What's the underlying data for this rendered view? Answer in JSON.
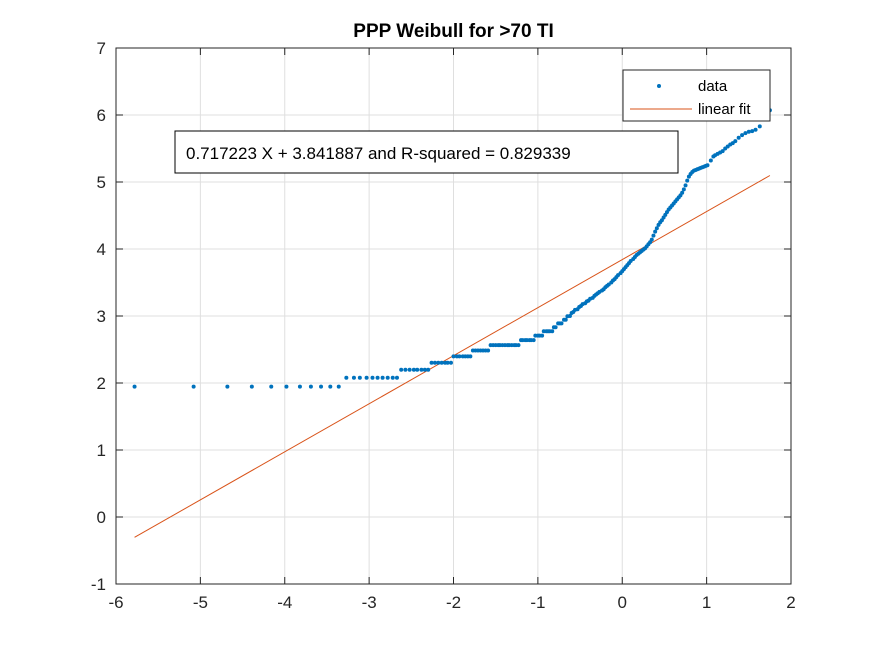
{
  "chart_data": {
    "type": "scatter",
    "title": "PPP Weibull for >70 TI",
    "xlabel": "",
    "ylabel": "",
    "xlim": [
      -6,
      2
    ],
    "ylim": [
      -1,
      7
    ],
    "x_ticks": [
      "-6",
      "-5",
      "-4",
      "-3",
      "-2",
      "-1",
      "0",
      "1",
      "2"
    ],
    "y_ticks": [
      "-1",
      "0",
      "1",
      "2",
      "3",
      "4",
      "5",
      "6",
      "7"
    ],
    "grid": true,
    "legend_position": "top-right",
    "series": [
      {
        "name": "data",
        "kind": "points",
        "color": "#0072BD",
        "values": [
          [
            -5.78,
            1.946
          ],
          [
            -5.08,
            1.946
          ],
          [
            -4.68,
            1.946
          ],
          [
            -4.39,
            1.946
          ],
          [
            -4.16,
            1.946
          ],
          [
            -3.98,
            1.946
          ],
          [
            -3.82,
            1.946
          ],
          [
            -3.69,
            1.946
          ],
          [
            -3.57,
            1.946
          ],
          [
            -3.46,
            1.946
          ],
          [
            -3.36,
            1.946
          ],
          [
            -3.27,
            2.079
          ],
          [
            -3.18,
            2.079
          ],
          [
            -3.11,
            2.079
          ],
          [
            -3.03,
            2.079
          ],
          [
            -2.96,
            2.079
          ],
          [
            -2.9,
            2.079
          ],
          [
            -2.84,
            2.079
          ],
          [
            -2.78,
            2.079
          ],
          [
            -2.72,
            2.079
          ],
          [
            -2.67,
            2.079
          ],
          [
            -2.62,
            2.197
          ],
          [
            -2.57,
            2.197
          ],
          [
            -2.52,
            2.197
          ],
          [
            -2.47,
            2.197
          ],
          [
            -2.43,
            2.197
          ],
          [
            -2.38,
            2.197
          ],
          [
            -2.34,
            2.197
          ],
          [
            -2.3,
            2.197
          ],
          [
            -2.26,
            2.303
          ],
          [
            -2.22,
            2.303
          ],
          [
            -2.18,
            2.303
          ],
          [
            -2.14,
            2.303
          ],
          [
            -2.1,
            2.303
          ],
          [
            -2.07,
            2.303
          ],
          [
            -2.03,
            2.303
          ],
          [
            -2.0,
            2.398
          ],
          [
            -1.96,
            2.398
          ],
          [
            -1.93,
            2.398
          ],
          [
            -1.89,
            2.398
          ],
          [
            -1.86,
            2.398
          ],
          [
            -1.83,
            2.398
          ],
          [
            -1.8,
            2.398
          ],
          [
            -1.77,
            2.485
          ],
          [
            -1.74,
            2.485
          ],
          [
            -1.71,
            2.485
          ],
          [
            -1.68,
            2.485
          ],
          [
            -1.65,
            2.485
          ],
          [
            -1.62,
            2.485
          ],
          [
            -1.59,
            2.485
          ],
          [
            -1.56,
            2.565
          ],
          [
            -1.53,
            2.565
          ],
          [
            -1.5,
            2.565
          ],
          [
            -1.47,
            2.565
          ],
          [
            -1.45,
            2.565
          ],
          [
            -1.42,
            2.565
          ],
          [
            -1.39,
            2.565
          ],
          [
            -1.36,
            2.565
          ],
          [
            -1.34,
            2.565
          ],
          [
            -1.31,
            2.565
          ],
          [
            -1.28,
            2.565
          ],
          [
            -1.26,
            2.565
          ],
          [
            -1.23,
            2.565
          ],
          [
            -1.2,
            2.639
          ],
          [
            -1.18,
            2.639
          ],
          [
            -1.15,
            2.639
          ],
          [
            -1.13,
            2.639
          ],
          [
            -1.1,
            2.639
          ],
          [
            -1.08,
            2.639
          ],
          [
            -1.05,
            2.639
          ],
          [
            -1.03,
            2.708
          ],
          [
            -1.0,
            2.708
          ],
          [
            -0.98,
            2.708
          ],
          [
            -0.95,
            2.708
          ],
          [
            -0.93,
            2.773
          ],
          [
            -0.9,
            2.773
          ],
          [
            -0.88,
            2.773
          ],
          [
            -0.86,
            2.773
          ],
          [
            -0.83,
            2.773
          ],
          [
            -0.81,
            2.833
          ],
          [
            -0.79,
            2.833
          ],
          [
            -0.76,
            2.89
          ],
          [
            -0.74,
            2.89
          ],
          [
            -0.72,
            2.89
          ],
          [
            -0.69,
            2.944
          ],
          [
            -0.67,
            2.944
          ],
          [
            -0.65,
            2.996
          ],
          [
            -0.62,
            3.0
          ],
          [
            -0.6,
            3.045
          ],
          [
            -0.58,
            3.06
          ],
          [
            -0.56,
            3.091
          ],
          [
            -0.53,
            3.1
          ],
          [
            -0.51,
            3.135
          ],
          [
            -0.49,
            3.15
          ],
          [
            -0.47,
            3.178
          ],
          [
            -0.44,
            3.19
          ],
          [
            -0.42,
            3.219
          ],
          [
            -0.4,
            3.23
          ],
          [
            -0.38,
            3.258
          ],
          [
            -0.35,
            3.27
          ],
          [
            -0.33,
            3.3
          ],
          [
            -0.31,
            3.32
          ],
          [
            -0.29,
            3.34
          ],
          [
            -0.27,
            3.36
          ],
          [
            -0.24,
            3.38
          ],
          [
            -0.22,
            3.4
          ],
          [
            -0.2,
            3.43
          ],
          [
            -0.18,
            3.45
          ],
          [
            -0.16,
            3.47
          ],
          [
            -0.13,
            3.5
          ],
          [
            -0.11,
            3.53
          ],
          [
            -0.09,
            3.55
          ],
          [
            -0.07,
            3.58
          ],
          [
            -0.05,
            3.61
          ],
          [
            -0.02,
            3.64
          ],
          [
            0.0,
            3.67
          ],
          [
            0.02,
            3.7
          ],
          [
            0.04,
            3.73
          ],
          [
            0.06,
            3.76
          ],
          [
            0.08,
            3.79
          ],
          [
            0.1,
            3.82
          ],
          [
            0.13,
            3.85
          ],
          [
            0.15,
            3.88
          ],
          [
            0.17,
            3.91
          ],
          [
            0.19,
            3.93
          ],
          [
            0.21,
            3.95
          ],
          [
            0.23,
            3.97
          ],
          [
            0.25,
            3.99
          ],
          [
            0.27,
            4.01
          ],
          [
            0.29,
            4.04
          ],
          [
            0.31,
            4.07
          ],
          [
            0.33,
            4.1
          ],
          [
            0.35,
            4.14
          ],
          [
            0.37,
            4.2
          ],
          [
            0.39,
            4.26
          ],
          [
            0.41,
            4.31
          ],
          [
            0.43,
            4.36
          ],
          [
            0.45,
            4.4
          ],
          [
            0.47,
            4.43
          ],
          [
            0.49,
            4.47
          ],
          [
            0.51,
            4.51
          ],
          [
            0.53,
            4.55
          ],
          [
            0.55,
            4.59
          ],
          [
            0.57,
            4.62
          ],
          [
            0.59,
            4.65
          ],
          [
            0.61,
            4.68
          ],
          [
            0.63,
            4.71
          ],
          [
            0.65,
            4.74
          ],
          [
            0.67,
            4.77
          ],
          [
            0.69,
            4.8
          ],
          [
            0.71,
            4.84
          ],
          [
            0.73,
            4.89
          ],
          [
            0.75,
            4.95
          ],
          [
            0.77,
            5.02
          ],
          [
            0.79,
            5.08
          ],
          [
            0.81,
            5.12
          ],
          [
            0.83,
            5.15
          ],
          [
            0.85,
            5.17
          ],
          [
            0.87,
            5.18
          ],
          [
            0.89,
            5.19
          ],
          [
            0.91,
            5.2
          ],
          [
            0.93,
            5.21
          ],
          [
            0.95,
            5.22
          ],
          [
            0.97,
            5.23
          ],
          [
            0.99,
            5.24
          ],
          [
            1.01,
            5.25
          ],
          [
            1.05,
            5.32
          ],
          [
            1.08,
            5.38
          ],
          [
            1.1,
            5.4
          ],
          [
            1.13,
            5.42
          ],
          [
            1.16,
            5.44
          ],
          [
            1.19,
            5.46
          ],
          [
            1.22,
            5.5
          ],
          [
            1.25,
            5.53
          ],
          [
            1.28,
            5.56
          ],
          [
            1.31,
            5.58
          ],
          [
            1.34,
            5.61
          ],
          [
            1.38,
            5.66
          ],
          [
            1.42,
            5.7
          ],
          [
            1.46,
            5.73
          ],
          [
            1.5,
            5.75
          ],
          [
            1.54,
            5.76
          ],
          [
            1.58,
            5.78
          ],
          [
            1.63,
            5.83
          ],
          [
            1.75,
            6.07
          ]
        ]
      },
      {
        "name": "linear fit",
        "kind": "line",
        "color": "#D95319",
        "slope": 0.717223,
        "intercept": 3.841887,
        "x_range": [
          -5.78,
          1.75
        ]
      }
    ],
    "annotation": "0.717223 X + 3.841887 and R-squared = 0.829339"
  }
}
